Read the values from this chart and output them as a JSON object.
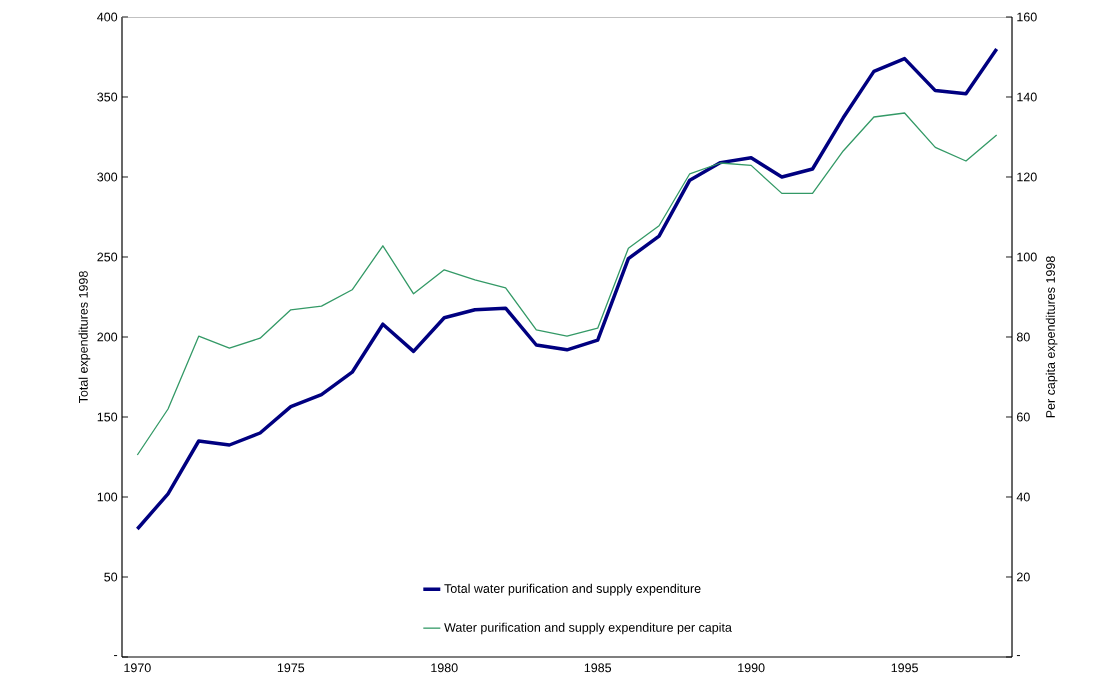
{
  "chart_data": {
    "type": "line",
    "ylabel": "Total expenditures 1998",
    "y2label": "Per capita expenditures 1998",
    "x": [
      1970,
      1971,
      1972,
      1973,
      1974,
      1975,
      1976,
      1977,
      1978,
      1979,
      1980,
      1981,
      1982,
      1983,
      1984,
      1985,
      1986,
      1987,
      1988,
      1989,
      1990,
      1991,
      1992,
      1993,
      1994,
      1995,
      1996,
      1997,
      1998
    ],
    "series": [
      {
        "name": "Total water purification and supply expenditure",
        "color": "#000080",
        "values": [
          80,
          102,
          135,
          132.5,
          140,
          156.5,
          164,
          178,
          208,
          191,
          212,
          217,
          218,
          195,
          192,
          198,
          249,
          263,
          298,
          309,
          312,
          300,
          305,
          337,
          366,
          374,
          354,
          352,
          380
        ]
      },
      {
        "name": "Water purification and supply expenditure per capita",
        "color": "#339966",
        "axis": "y2",
        "values": [
          50.5,
          62,
          80.2,
          77.2,
          79.7,
          86.8,
          87.7,
          91.8,
          102.8,
          90.8,
          96.8,
          94.3,
          92.3,
          81.8,
          80.2,
          82.2,
          102.2,
          107.8,
          120.8,
          123.5,
          122.9,
          115.9,
          115.9,
          126.5,
          135,
          136,
          127.4,
          124,
          130.5
        ]
      }
    ],
    "xlim": [
      1969.5,
      1998.5
    ],
    "xticks": [
      1970,
      1975,
      1980,
      1985,
      1990,
      1995
    ],
    "ylim": [
      0,
      400
    ],
    "yticks": [
      {
        "value": 0,
        "label": "-"
      },
      50,
      100,
      150,
      200,
      250,
      300,
      350,
      400
    ],
    "y2lim": [
      0,
      160
    ],
    "y2ticks": [
      {
        "value": 0,
        "label": "-"
      },
      20,
      40,
      60,
      80,
      100,
      120,
      140,
      160
    ],
    "legend": "bottom"
  }
}
